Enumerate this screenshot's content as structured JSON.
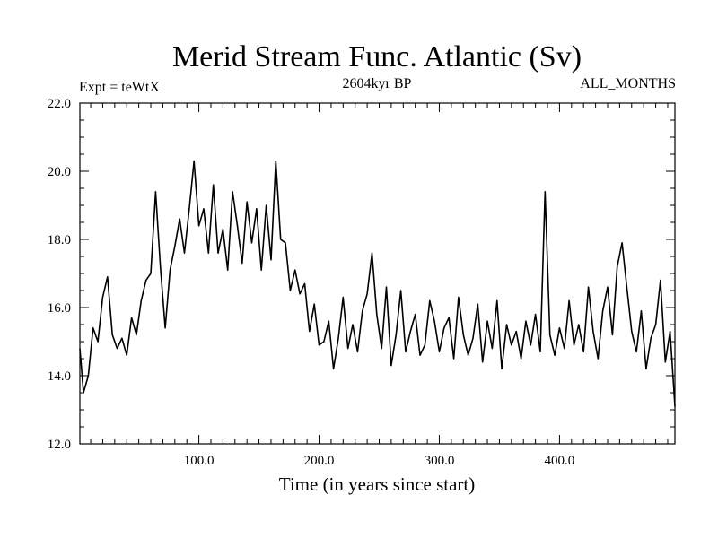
{
  "chart_data": {
    "type": "line",
    "title": "Merid Stream Func. Atlantic (Sv)",
    "subtitle_left": "Expt = teWtX",
    "subtitle_center": "2604kyr BP",
    "subtitle_right": "ALL_MONTHS",
    "xlabel": "Time (in years since start)",
    "ylabel": "",
    "xlim": [
      1,
      496
    ],
    "ylim": [
      12.0,
      22.0
    ],
    "x_ticks": [
      100,
      200,
      300,
      400
    ],
    "x_tick_labels": [
      "100.0",
      "200.0",
      "300.0",
      "400.0"
    ],
    "y_ticks": [
      12,
      14,
      16,
      18,
      20,
      22
    ],
    "y_tick_labels": [
      "12.0",
      "14.0",
      "16.0",
      "18.0",
      "20.0",
      "22.0"
    ],
    "grid": false,
    "series": [
      {
        "name": "Merid Stream Func. Atlantic",
        "x": [
          1,
          4,
          8,
          12,
          16,
          20,
          24,
          28,
          32,
          36,
          40,
          44,
          48,
          52,
          56,
          60,
          64,
          68,
          72,
          76,
          80,
          84,
          88,
          92,
          96,
          100,
          104,
          108,
          112,
          116,
          120,
          124,
          128,
          132,
          136,
          140,
          144,
          148,
          152,
          156,
          160,
          164,
          168,
          172,
          176,
          180,
          184,
          188,
          192,
          196,
          200,
          204,
          208,
          212,
          216,
          220,
          224,
          228,
          232,
          236,
          240,
          244,
          248,
          252,
          256,
          260,
          264,
          268,
          272,
          276,
          280,
          284,
          288,
          292,
          296,
          300,
          304,
          308,
          312,
          316,
          320,
          324,
          328,
          332,
          336,
          340,
          344,
          348,
          352,
          356,
          360,
          364,
          368,
          372,
          376,
          380,
          384,
          388,
          392,
          396,
          400,
          404,
          408,
          412,
          416,
          420,
          424,
          428,
          432,
          436,
          440,
          444,
          448,
          452,
          456,
          460,
          464,
          468,
          472,
          476,
          480,
          484,
          488,
          492,
          496
        ],
        "values": [
          14.8,
          13.5,
          14.0,
          15.4,
          15.0,
          16.3,
          16.9,
          15.2,
          14.8,
          15.1,
          14.6,
          15.7,
          15.2,
          16.2,
          16.8,
          17.0,
          19.4,
          17.2,
          15.4,
          17.1,
          17.8,
          18.6,
          17.6,
          18.9,
          20.3,
          18.4,
          18.9,
          17.6,
          19.6,
          17.6,
          18.3,
          17.1,
          19.4,
          18.4,
          17.3,
          19.1,
          17.9,
          18.9,
          17.1,
          19.0,
          17.4,
          20.3,
          18.0,
          17.9,
          16.5,
          17.1,
          16.4,
          16.7,
          15.3,
          16.1,
          14.9,
          15.0,
          15.6,
          14.2,
          15.1,
          16.3,
          14.8,
          15.5,
          14.7,
          15.9,
          16.4,
          17.6,
          15.8,
          14.8,
          16.6,
          14.3,
          15.2,
          16.5,
          14.7,
          15.3,
          15.8,
          14.6,
          14.9,
          16.2,
          15.6,
          14.7,
          15.4,
          15.7,
          14.5,
          16.3,
          15.2,
          14.6,
          15.1,
          16.1,
          14.4,
          15.6,
          14.8,
          16.2,
          14.2,
          15.5,
          14.9,
          15.3,
          14.5,
          15.6,
          14.9,
          15.8,
          14.7,
          19.4,
          15.2,
          14.6,
          15.4,
          14.8,
          16.2,
          14.9,
          15.5,
          14.7,
          16.6,
          15.3,
          14.5,
          15.9,
          16.6,
          15.2,
          17.2,
          17.9,
          16.6,
          15.3,
          14.7,
          15.9,
          14.2,
          15.1,
          15.5,
          16.8,
          14.4,
          15.3,
          13.1
        ]
      }
    ]
  }
}
